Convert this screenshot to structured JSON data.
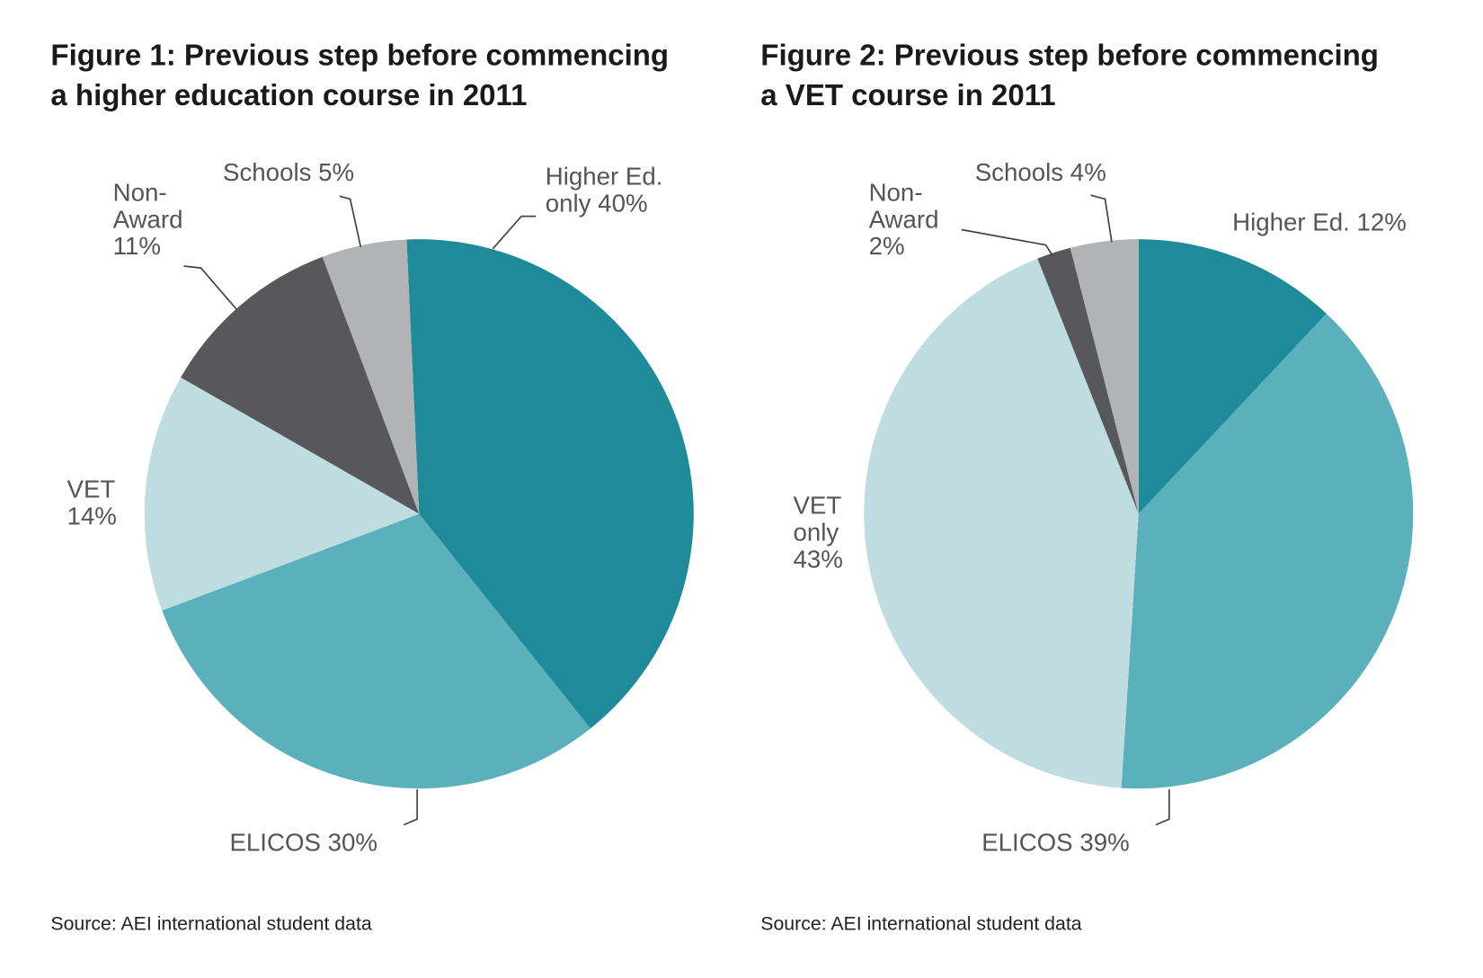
{
  "colors": {
    "higher_ed": "#1f8a99",
    "elicos": "#5ab1bb",
    "vet": "#bfdde0",
    "non_award": "#58585a",
    "schools": "#b2b3b5"
  },
  "chart_data": [
    {
      "type": "pie",
      "title_line1": "Figure 1: Previous step before commencing",
      "title_line2": "a higher education course in 2011",
      "source": "Source: AEI international student data",
      "start_angle_deg": -2.6,
      "direction": "clockwise",
      "slices": [
        {
          "key": "higher_ed",
          "value": 40,
          "label_lines": [
            "Higher Ed.",
            "only 40%"
          ]
        },
        {
          "key": "elicos",
          "value": 30,
          "label_lines": [
            "ELICOS 30%"
          ]
        },
        {
          "key": "vet",
          "value": 14,
          "label_lines": [
            "VET",
            "14%"
          ]
        },
        {
          "key": "non_award",
          "value": 11,
          "label_lines": [
            "Non-",
            "Award",
            "11%"
          ]
        },
        {
          "key": "schools",
          "value": 5,
          "label_lines": [
            "Schools 5%"
          ]
        }
      ]
    },
    {
      "type": "pie",
      "title_line1": "Figure 2: Previous step before commencing",
      "title_line2": "a VET course in 2011",
      "source": "Source: AEI international student data",
      "start_angle_deg": 0,
      "direction": "clockwise",
      "slices": [
        {
          "key": "higher_ed",
          "value": 12,
          "label_lines": [
            "Higher Ed. 12%"
          ]
        },
        {
          "key": "elicos",
          "value": 39,
          "label_lines": [
            "ELICOS 39%"
          ]
        },
        {
          "key": "vet",
          "value": 43,
          "label_lines": [
            "VET",
            "only",
            "43%"
          ]
        },
        {
          "key": "non_award",
          "value": 2,
          "label_lines": [
            "Non-",
            "Award",
            "2%"
          ]
        },
        {
          "key": "schools",
          "value": 4,
          "label_lines": [
            "Schools 4%"
          ]
        }
      ]
    }
  ]
}
